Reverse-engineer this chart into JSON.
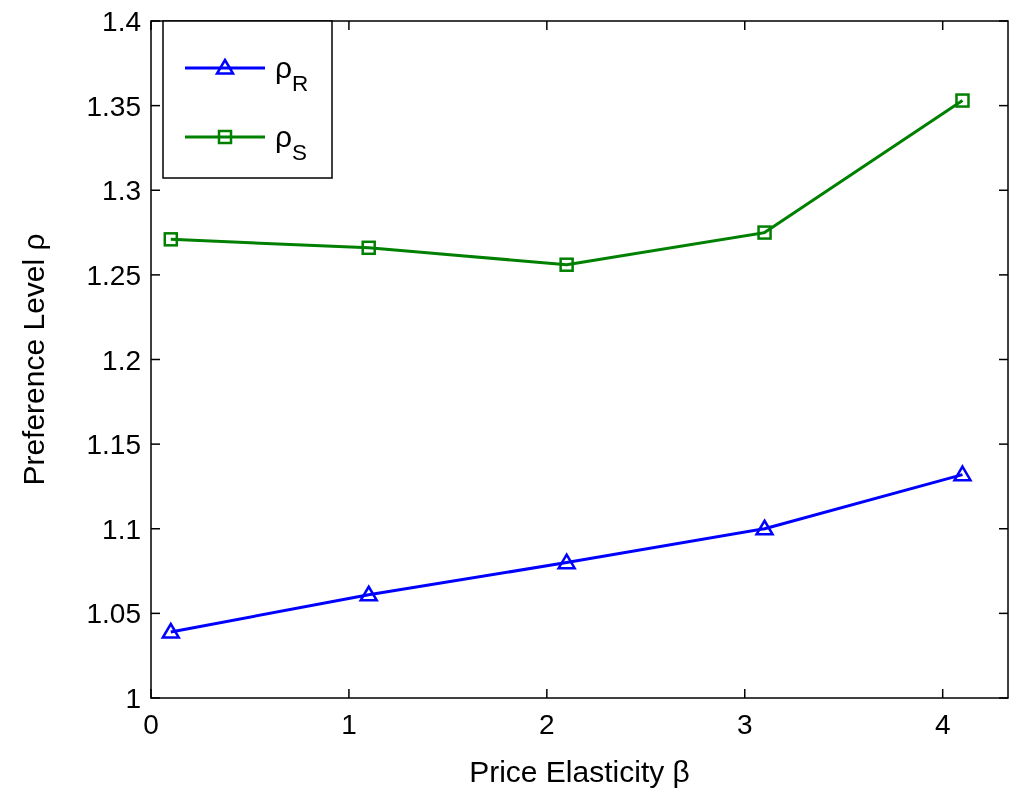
{
  "chart_data": {
    "type": "line",
    "xlabel": "Price Elasticity β",
    "ylabel": "Preference Level ρ",
    "x": [
      0.1,
      1.1,
      2.1,
      3.1,
      4.1
    ],
    "series": [
      {
        "name": "ρ$_{R}$",
        "color": "#0000ff",
        "marker": "triangle",
        "values": [
          1.039,
          1.061,
          1.08,
          1.1,
          1.132
        ]
      },
      {
        "name": "ρ$_{S}$",
        "color": "#008000",
        "marker": "square",
        "values": [
          1.271,
          1.266,
          1.256,
          1.275,
          1.353
        ]
      }
    ],
    "xlim": [
      0,
      4.33
    ],
    "xticks": [
      0,
      1,
      2,
      3,
      4
    ],
    "ylim": [
      1,
      1.4
    ],
    "yticks": [
      1,
      1.05,
      1.1,
      1.15,
      1.2,
      1.25,
      1.3,
      1.35,
      1.4
    ],
    "grid": false,
    "legend": "top left",
    "line_style": "solid"
  }
}
